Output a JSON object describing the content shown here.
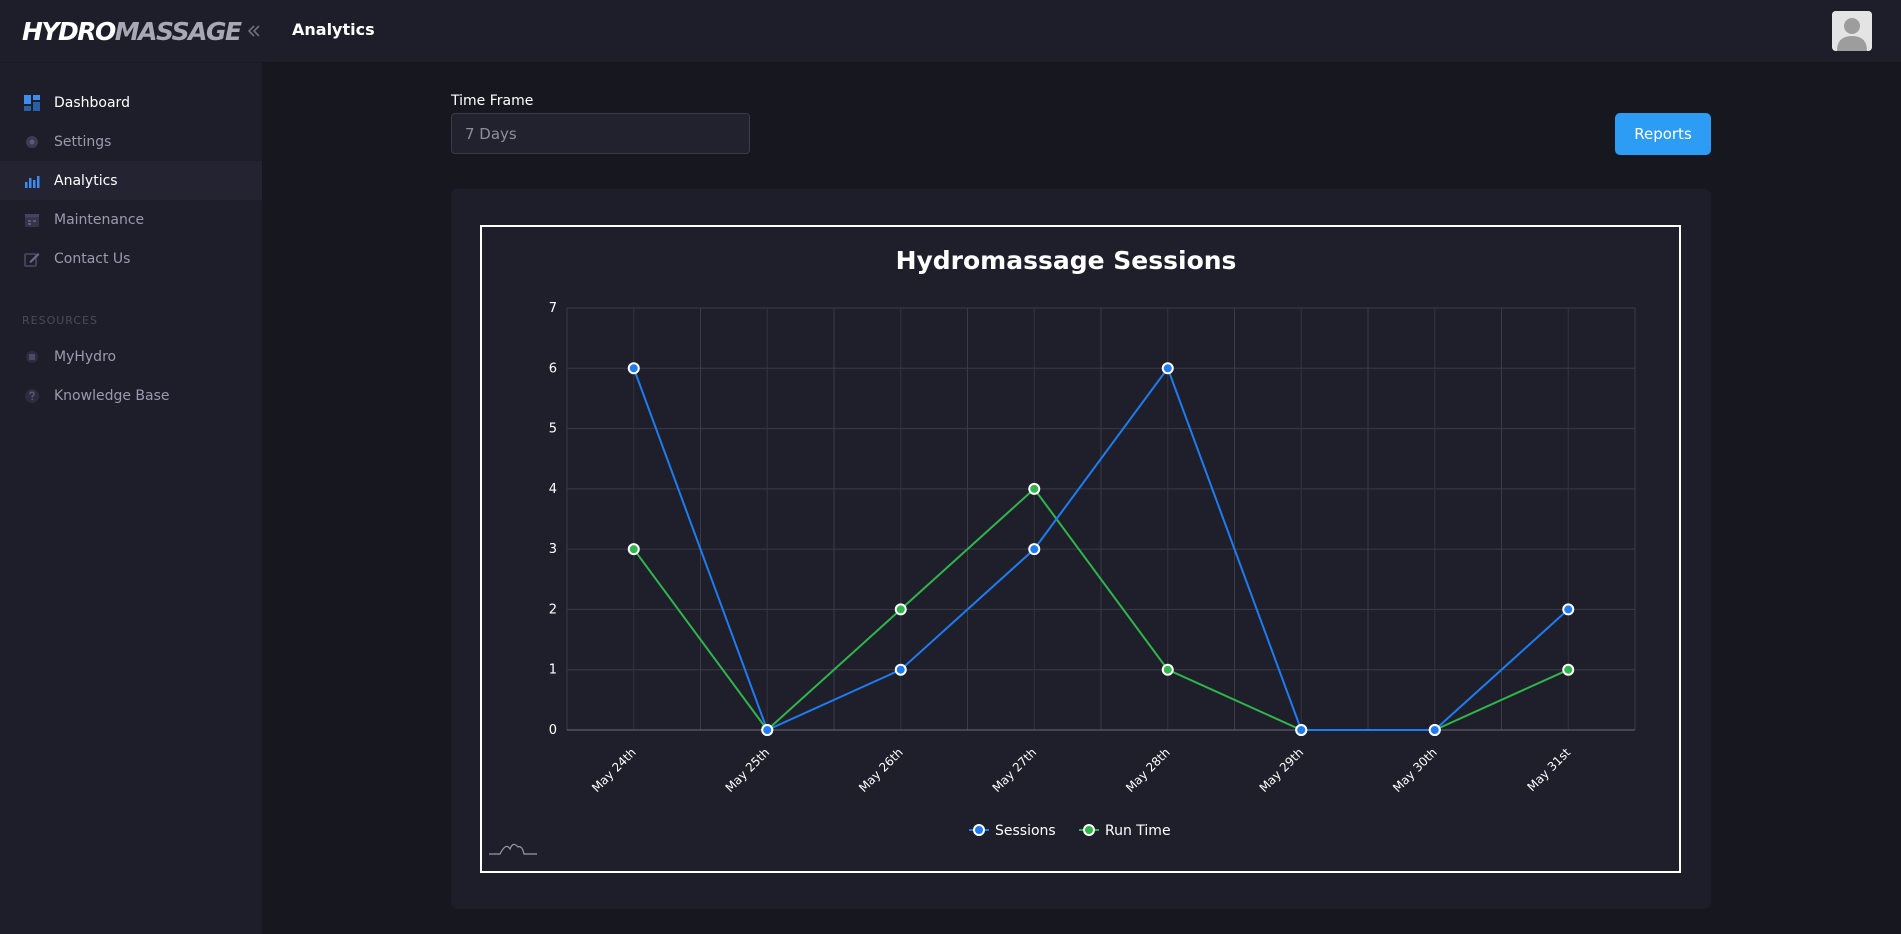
{
  "brand": {
    "logo_part1": "HYDRO",
    "logo_part2": "MASSAGE"
  },
  "sidebar": {
    "items": [
      {
        "label": "Dashboard",
        "icon": "dashboard-icon"
      },
      {
        "label": "Settings",
        "icon": "gear-icon"
      },
      {
        "label": "Analytics",
        "icon": "bar-chart-icon"
      },
      {
        "label": "Maintenance",
        "icon": "calendar-icon"
      },
      {
        "label": "Contact Us",
        "icon": "edit-icon"
      }
    ],
    "resources_label": "RESOURCES",
    "resources": [
      {
        "label": "MyHydro",
        "icon": "chip-icon"
      },
      {
        "label": "Knowledge Base",
        "icon": "help-icon"
      }
    ]
  },
  "header": {
    "title": "Analytics"
  },
  "filters": {
    "time_frame_label": "Time Frame",
    "time_frame_value": "7 Days"
  },
  "actions": {
    "reports_label": "Reports"
  },
  "colors": {
    "accent": "#2c9cf4",
    "sessions": "#1e7cf0",
    "run_time": "#2fb54a",
    "background": "#171720"
  },
  "chart_data": {
    "type": "line",
    "title": "Hydromassage Sessions",
    "categories": [
      "May 24th",
      "May 25th",
      "May 26th",
      "May 27th",
      "May 28th",
      "May 29th",
      "May 30th",
      "May 31st"
    ],
    "series": [
      {
        "name": "Sessions",
        "values": [
          6,
          0,
          1,
          3,
          6,
          0,
          0,
          2
        ]
      },
      {
        "name": "Run Time",
        "values": [
          3,
          0,
          2,
          4,
          1,
          0,
          0,
          1
        ]
      }
    ],
    "ylim": [
      0,
      7
    ],
    "yticks": [
      0,
      1,
      2,
      3,
      4,
      5,
      6,
      7
    ],
    "grid": true,
    "legend": "bottom"
  }
}
